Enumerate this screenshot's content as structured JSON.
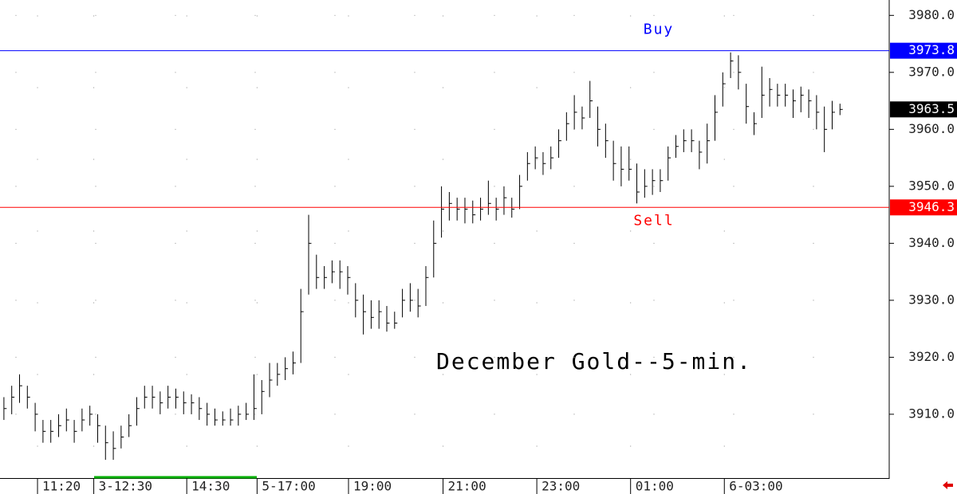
{
  "chart_data": {
    "type": "ohlc",
    "title": "December Gold--5-min.",
    "high": [
      3913,
      3915,
      3917,
      3915,
      3912,
      3909,
      3909,
      3910,
      3911,
      3909,
      3911,
      3911.5,
      3910,
      3908,
      3907,
      3908,
      3910,
      3913,
      3915,
      3915,
      3914,
      3915,
      3914.5,
      3914,
      3913.5,
      3913,
      3912,
      3911,
      3910.5,
      3911,
      3911.5,
      3912,
      3917,
      3916,
      3919,
      3919,
      3920,
      3921,
      3932,
      3945,
      3938,
      3936,
      3937,
      3937,
      3936,
      3933,
      3931,
      3930,
      3930,
      3929,
      3928,
      3932,
      3933,
      3932,
      3936,
      3944,
      3950,
      3949,
      3948,
      3948,
      3947.5,
      3948,
      3951,
      3948,
      3950,
      3948,
      3952,
      3956,
      3957,
      3956,
      3957,
      3960,
      3963,
      3966,
      3964,
      3968.5,
      3964,
      3961,
      3958,
      3957,
      3957,
      3954,
      3953,
      3953,
      3953,
      3957,
      3959,
      3960,
      3960,
      3958,
      3961,
      3966,
      3970,
      3973.5,
      3973,
      3968,
      3963,
      3971,
      3969,
      3968,
      3968,
      3967,
      3967.5,
      3967,
      3966,
      3964,
      3965,
      3964.5
    ],
    "low": [
      3909,
      3910,
      3912,
      3911,
      3907,
      3905,
      3905,
      3906,
      3907,
      3905,
      3907,
      3908,
      3905,
      3902,
      3902,
      3904,
      3906,
      3908,
      3911,
      3911,
      3910,
      3911,
      3911,
      3910,
      3910,
      3909,
      3908,
      3908,
      3908,
      3908,
      3908,
      3909,
      3909,
      3910,
      3913,
      3915,
      3916,
      3917,
      3919,
      3931,
      3932,
      3932,
      3933,
      3932,
      3931,
      3927,
      3924,
      3925,
      3925,
      3924.5,
      3925,
      3927,
      3928,
      3927,
      3929,
      3934,
      3941,
      3944,
      3944,
      3943.5,
      3943.5,
      3944,
      3945,
      3944,
      3945,
      3944.5,
      3946,
      3951,
      3953,
      3952,
      3953,
      3955,
      3958,
      3960,
      3960,
      3962,
      3957,
      3955,
      3951,
      3950,
      3951,
      3947,
      3948,
      3948.5,
      3949,
      3951,
      3955,
      3956,
      3956,
      3953,
      3954,
      3958,
      3964,
      3969,
      3967,
      3961,
      3959,
      3962,
      3964,
      3964,
      3964,
      3962,
      3963,
      3962,
      3960,
      3956,
      3960,
      3962.5
    ],
    "close": [
      3911,
      3913,
      3915,
      3913,
      3910,
      3907,
      3907,
      3908,
      3909,
      3907,
      3909,
      3910,
      3908,
      3905,
      3904,
      3906,
      3908,
      3911,
      3913,
      3913,
      3912,
      3913,
      3913,
      3912,
      3912,
      3911,
      3910,
      3909,
      3909,
      3909,
      3910,
      3910,
      3911,
      3914,
      3916,
      3917,
      3918,
      3919,
      3928,
      3940,
      3934,
      3934,
      3935,
      3935,
      3934,
      3930,
      3928,
      3927,
      3928,
      3926,
      3926,
      3930,
      3930,
      3929,
      3934,
      3940,
      3946,
      3947,
      3946,
      3946,
      3945,
      3946,
      3947,
      3946,
      3948,
      3946,
      3950,
      3954,
      3955,
      3954,
      3955,
      3958,
      3961,
      3963,
      3962,
      3965,
      3960,
      3958,
      3954,
      3953,
      3953,
      3949,
      3950,
      3951,
      3951,
      3955,
      3957,
      3958,
      3958,
      3956,
      3958,
      3963,
      3968,
      3972,
      3970,
      3964,
      3961,
      3966,
      3967,
      3966,
      3966,
      3965,
      3966,
      3965,
      3963,
      3960,
      3963,
      3963.5
    ],
    "color": "#000000",
    "xlim": [
      0,
      113.8
    ],
    "xticks": [
      {
        "value": 4.8,
        "label": "11:20"
      },
      {
        "value": 12.0,
        "label": "3-12:30"
      },
      {
        "value": 23.9,
        "label": "14:30"
      },
      {
        "value": 32.9,
        "label": "5-17:00"
      },
      {
        "value": 44.6,
        "label": "19:00"
      },
      {
        "value": 56.7,
        "label": "21:00"
      },
      {
        "value": 68.7,
        "label": "23:00"
      },
      {
        "value": 80.7,
        "label": "01:00"
      },
      {
        "value": 92.7,
        "label": "6-03:00"
      }
    ],
    "ylim": [
      3898.8,
      3982.7
    ],
    "yticks": [
      {
        "value": 3910,
        "label": "3910.0"
      },
      {
        "value": 3920,
        "label": "3920.0"
      },
      {
        "value": 3930,
        "label": "3930.0"
      },
      {
        "value": 3940,
        "label": "3940.0"
      },
      {
        "value": 3950,
        "label": "3950.0"
      },
      {
        "value": 3960,
        "label": "3960.0"
      },
      {
        "value": 3970,
        "label": "3970.0"
      },
      {
        "value": 3980,
        "label": "3980.0"
      }
    ],
    "lines": [
      {
        "name": "Buy",
        "value": 3973.8,
        "label": "3973.8",
        "color": "#0000ff"
      },
      {
        "name": "Sell",
        "value": 3946.3,
        "label": "3946.3",
        "color": "#ff0000"
      }
    ],
    "last": {
      "value": 3963.5,
      "label": "3963.5",
      "color": "#000000"
    },
    "grid": true
  }
}
